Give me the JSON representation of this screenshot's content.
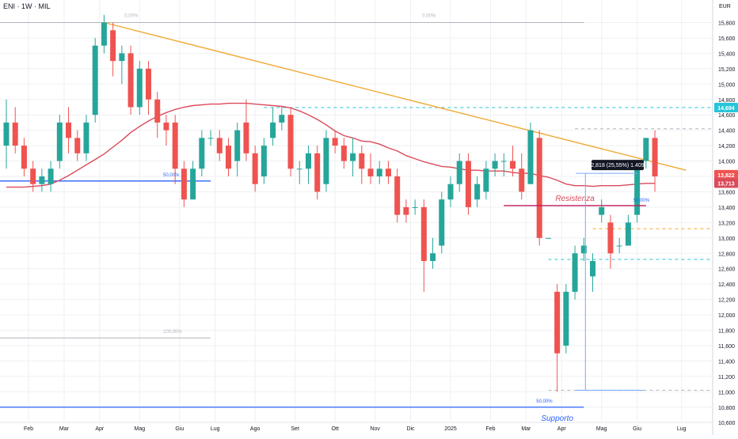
{
  "title": "ENI · 1W · MIL",
  "currency": "EUR",
  "colors": {
    "up": "#26a69a",
    "down": "#ef5350",
    "ma": "#d94a5a",
    "trend": "#f0a830",
    "fib": "#2962ff",
    "support": "#2962ff",
    "resistance": "#c2185b",
    "dash_teal": "#26c6da",
    "dash_orange": "#f9a825",
    "grid": "#eef0f3",
    "axis_text": "#131722",
    "measure_bg": "#131722",
    "last_up": "#26a69a",
    "last_down": "#ef5350"
  },
  "chart_data": {
    "type": "candlestick",
    "ylim": [
      10.6,
      15.9
    ],
    "y_ticks": [
      "15,800",
      "15,600",
      "15,400",
      "15,200",
      "15,000",
      "14,800",
      "14,600",
      "14,400",
      "14,200",
      "14,000",
      "13,800",
      "13,600",
      "13,400",
      "13,200",
      "13,000",
      "12,800",
      "12,600",
      "12,400",
      "12,200",
      "12,000",
      "11,800",
      "11,600",
      "11,400",
      "11,200",
      "11,000",
      "10,800",
      "10,600"
    ],
    "x_ticks": [
      {
        "label": "Feb",
        "i": 2.5
      },
      {
        "label": "Mar",
        "i": 6.5
      },
      {
        "label": "Apr",
        "i": 10.5
      },
      {
        "label": "Mag",
        "i": 15
      },
      {
        "label": "Giu",
        "i": 19.5
      },
      {
        "label": "Lug",
        "i": 23.5
      },
      {
        "label": "Ago",
        "i": 28
      },
      {
        "label": "Set",
        "i": 32.5
      },
      {
        "label": "Ott",
        "i": 37
      },
      {
        "label": "Nov",
        "i": 41.5
      },
      {
        "label": "Dic",
        "i": 45.5
      },
      {
        "label": "2025",
        "i": 50
      },
      {
        "label": "Feb",
        "i": 54.5
      },
      {
        "label": "Mar",
        "i": 58.5
      },
      {
        "label": "Apr",
        "i": 62.5
      },
      {
        "label": "Mag",
        "i": 67
      },
      {
        "label": "Giu",
        "i": 71
      },
      {
        "label": "Lug",
        "i": 76
      }
    ],
    "candles": [
      [
        14.2,
        14.5,
        13.9,
        14.8
      ],
      [
        14.5,
        14.2,
        14.1,
        14.7
      ],
      [
        14.2,
        13.9,
        13.8,
        14.3
      ],
      [
        13.9,
        13.7,
        13.6,
        14.0
      ],
      [
        13.7,
        13.8,
        13.6,
        13.9
      ],
      [
        13.7,
        13.9,
        13.6,
        14.0
      ],
      [
        14.0,
        14.5,
        13.9,
        14.6
      ],
      [
        14.5,
        14.3,
        14.1,
        14.7
      ],
      [
        14.3,
        14.1,
        14.0,
        14.4
      ],
      [
        14.1,
        14.5,
        14.0,
        14.6
      ],
      [
        14.6,
        15.5,
        14.5,
        15.6
      ],
      [
        15.5,
        15.8,
        15.4,
        15.9
      ],
      [
        15.7,
        15.3,
        15.1,
        15.8
      ],
      [
        15.3,
        15.4,
        15.0,
        15.5
      ],
      [
        15.4,
        14.7,
        14.6,
        15.5
      ],
      [
        14.7,
        15.2,
        14.6,
        15.3
      ],
      [
        15.2,
        14.8,
        14.6,
        15.3
      ],
      [
        14.8,
        14.5,
        14.3,
        14.9
      ],
      [
        14.5,
        14.4,
        14.2,
        14.6
      ],
      [
        14.5,
        13.9,
        13.7,
        14.6
      ],
      [
        13.9,
        13.5,
        13.4,
        14.0
      ],
      [
        13.5,
        13.9,
        13.5,
        14.0
      ],
      [
        13.9,
        14.3,
        13.8,
        14.4
      ],
      [
        14.3,
        14.3,
        14.2,
        14.4
      ],
      [
        14.3,
        14.1,
        14.0,
        14.4
      ],
      [
        14.2,
        13.9,
        13.8,
        14.3
      ],
      [
        14.0,
        14.4,
        13.8,
        14.5
      ],
      [
        14.5,
        14.1,
        14.0,
        14.8
      ],
      [
        14.1,
        13.7,
        13.6,
        14.2
      ],
      [
        13.8,
        14.2,
        13.7,
        14.3
      ],
      [
        14.3,
        14.5,
        14.2,
        14.7
      ],
      [
        14.5,
        14.6,
        14.4,
        14.7
      ],
      [
        14.6,
        13.9,
        13.8,
        14.7
      ],
      [
        13.9,
        13.9,
        13.7,
        14.0
      ],
      [
        13.9,
        14.1,
        13.7,
        14.2
      ],
      [
        14.1,
        13.6,
        13.5,
        14.2
      ],
      [
        13.7,
        14.3,
        13.6,
        14.4
      ],
      [
        14.3,
        14.2,
        14.1,
        14.4
      ],
      [
        14.2,
        14.0,
        13.9,
        14.3
      ],
      [
        14.0,
        14.1,
        13.8,
        14.3
      ],
      [
        14.1,
        13.9,
        13.7,
        14.2
      ],
      [
        13.9,
        13.8,
        13.7,
        14.1
      ],
      [
        13.8,
        13.9,
        13.7,
        14.0
      ],
      [
        13.9,
        13.8,
        13.7,
        14.0
      ],
      [
        13.8,
        13.3,
        13.2,
        13.9
      ],
      [
        13.4,
        13.3,
        13.2,
        13.5
      ],
      [
        13.4,
        13.4,
        13.3,
        13.5
      ],
      [
        13.4,
        12.7,
        12.3,
        13.5
      ],
      [
        12.7,
        12.8,
        12.6,
        13.0
      ],
      [
        12.9,
        13.5,
        12.8,
        13.6
      ],
      [
        13.5,
        13.7,
        13.4,
        13.8
      ],
      [
        13.7,
        14.0,
        13.6,
        14.1
      ],
      [
        14.0,
        13.4,
        13.3,
        14.1
      ],
      [
        13.5,
        13.7,
        13.4,
        13.8
      ],
      [
        13.6,
        13.9,
        13.5,
        14.0
      ],
      [
        13.9,
        14.0,
        13.8,
        14.1
      ],
      [
        14.0,
        14.0,
        13.8,
        14.1
      ],
      [
        14.0,
        13.9,
        13.8,
        14.2
      ],
      [
        13.9,
        13.6,
        13.5,
        14.1
      ],
      [
        13.7,
        14.4,
        13.7,
        14.5
      ],
      [
        14.3,
        13.0,
        12.9,
        14.4
      ],
      [
        13.0,
        13.0,
        13.0,
        13.0
      ],
      [
        12.3,
        11.5,
        11.0,
        12.4
      ],
      [
        11.6,
        12.3,
        11.5,
        12.4
      ],
      [
        12.3,
        12.8,
        12.2,
        12.9
      ],
      [
        12.8,
        12.9,
        12.7,
        13.0
      ],
      [
        12.5,
        12.7,
        12.3,
        12.8
      ],
      [
        13.3,
        13.4,
        13.2,
        13.5
      ],
      [
        13.2,
        12.8,
        12.6,
        13.3
      ],
      [
        12.9,
        12.9,
        12.8,
        13.0
      ],
      [
        12.9,
        13.2,
        12.9,
        13.3
      ],
      [
        13.3,
        13.9,
        13.2,
        14.0
      ],
      [
        14.0,
        14.3,
        13.9,
        14.3
      ],
      [
        14.3,
        13.8,
        13.6,
        14.4
      ]
    ],
    "moving_average": [
      13.66,
      13.66,
      13.66,
      13.67,
      13.68,
      13.7,
      13.75,
      13.81,
      13.88,
      13.95,
      14.02,
      14.09,
      14.18,
      14.27,
      14.37,
      14.45,
      14.52,
      14.58,
      14.63,
      14.67,
      14.7,
      14.72,
      14.73,
      14.74,
      14.74,
      14.75,
      14.75,
      14.75,
      14.74,
      14.73,
      14.72,
      14.71,
      14.69,
      14.65,
      14.6,
      14.54,
      14.47,
      14.39,
      14.33,
      14.3,
      14.26,
      14.25,
      14.22,
      14.17,
      14.13,
      14.07,
      14.03,
      13.99,
      13.96,
      13.93,
      13.92,
      13.9,
      13.88,
      13.88,
      13.87,
      13.87,
      13.87,
      13.85,
      13.84,
      13.84,
      13.81,
      13.79,
      13.75,
      13.7,
      13.68,
      13.68,
      13.67,
      13.68,
      13.68,
      13.68,
      13.69,
      13.7,
      13.71,
      13.71
    ],
    "trendline": {
      "from": {
        "i": 11,
        "price": 15.8
      },
      "to": {
        "i": 76.5,
        "price": 13.88
      }
    },
    "fib_levels": [
      {
        "label": "0,00%",
        "price": 15.8,
        "from_i": -2,
        "to_i": 23
      },
      {
        "label": "0,00%",
        "price": 15.8,
        "from_i": 23,
        "to_i": 65
      }
    ],
    "fib_left": [
      {
        "label": "50,00%",
        "price": 13.74,
        "from_i": -2,
        "to_i": 23,
        "color": "blue",
        "thick": true
      },
      {
        "label": "100,00%",
        "price": 11.7,
        "from_i": -2,
        "to_i": 23,
        "color": "gray"
      },
      {
        "label": "50,00%",
        "price": 10.8,
        "from_i": -2,
        "to_i": 65,
        "color": "blue",
        "thick": true
      }
    ],
    "dashed_lines": [
      {
        "price": 14.694,
        "from_i": 29,
        "to_i": 78,
        "color": "teal"
      },
      {
        "price": 14.42,
        "from_i": 64,
        "to_i": 78,
        "color": "gray"
      },
      {
        "price": 13.12,
        "from_i": 66,
        "to_i": 78,
        "color": "orange"
      },
      {
        "price": 12.72,
        "from_i": 61,
        "to_i": 78,
        "color": "teal"
      },
      {
        "price": 11.02,
        "from_i": 61,
        "to_i": 78,
        "color": "gray"
      }
    ],
    "resistance": {
      "label": "Resistenza",
      "price": 13.42,
      "from_i": 56,
      "to_i": 72
    },
    "support": {
      "label": "Supporto"
    },
    "fib_mid_label": {
      "label": "50,00%",
      "price": 13.47,
      "i": 67
    },
    "measure": {
      "label": "2,818 (25,55%) 1.409",
      "from_i": 65,
      "to_i": 71,
      "from_price": 11.02,
      "to_price": 13.84
    },
    "price_labels": [
      {
        "text": "14,694",
        "price": 14.694,
        "kind": "teal"
      },
      {
        "text": "13,822",
        "price": 13.822,
        "kind": "down"
      },
      {
        "text": "13,713",
        "price": 13.713,
        "kind": "ma"
      }
    ]
  }
}
